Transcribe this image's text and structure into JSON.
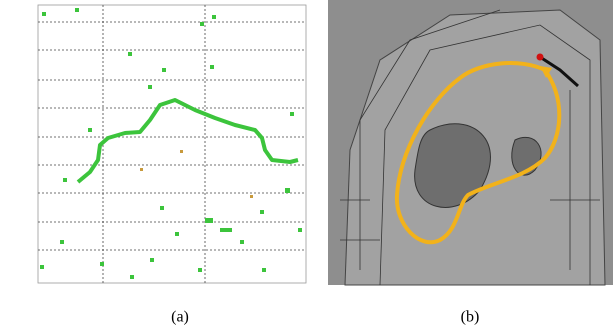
{
  "captions": {
    "left": "(a)",
    "right": "(b)"
  }
}
